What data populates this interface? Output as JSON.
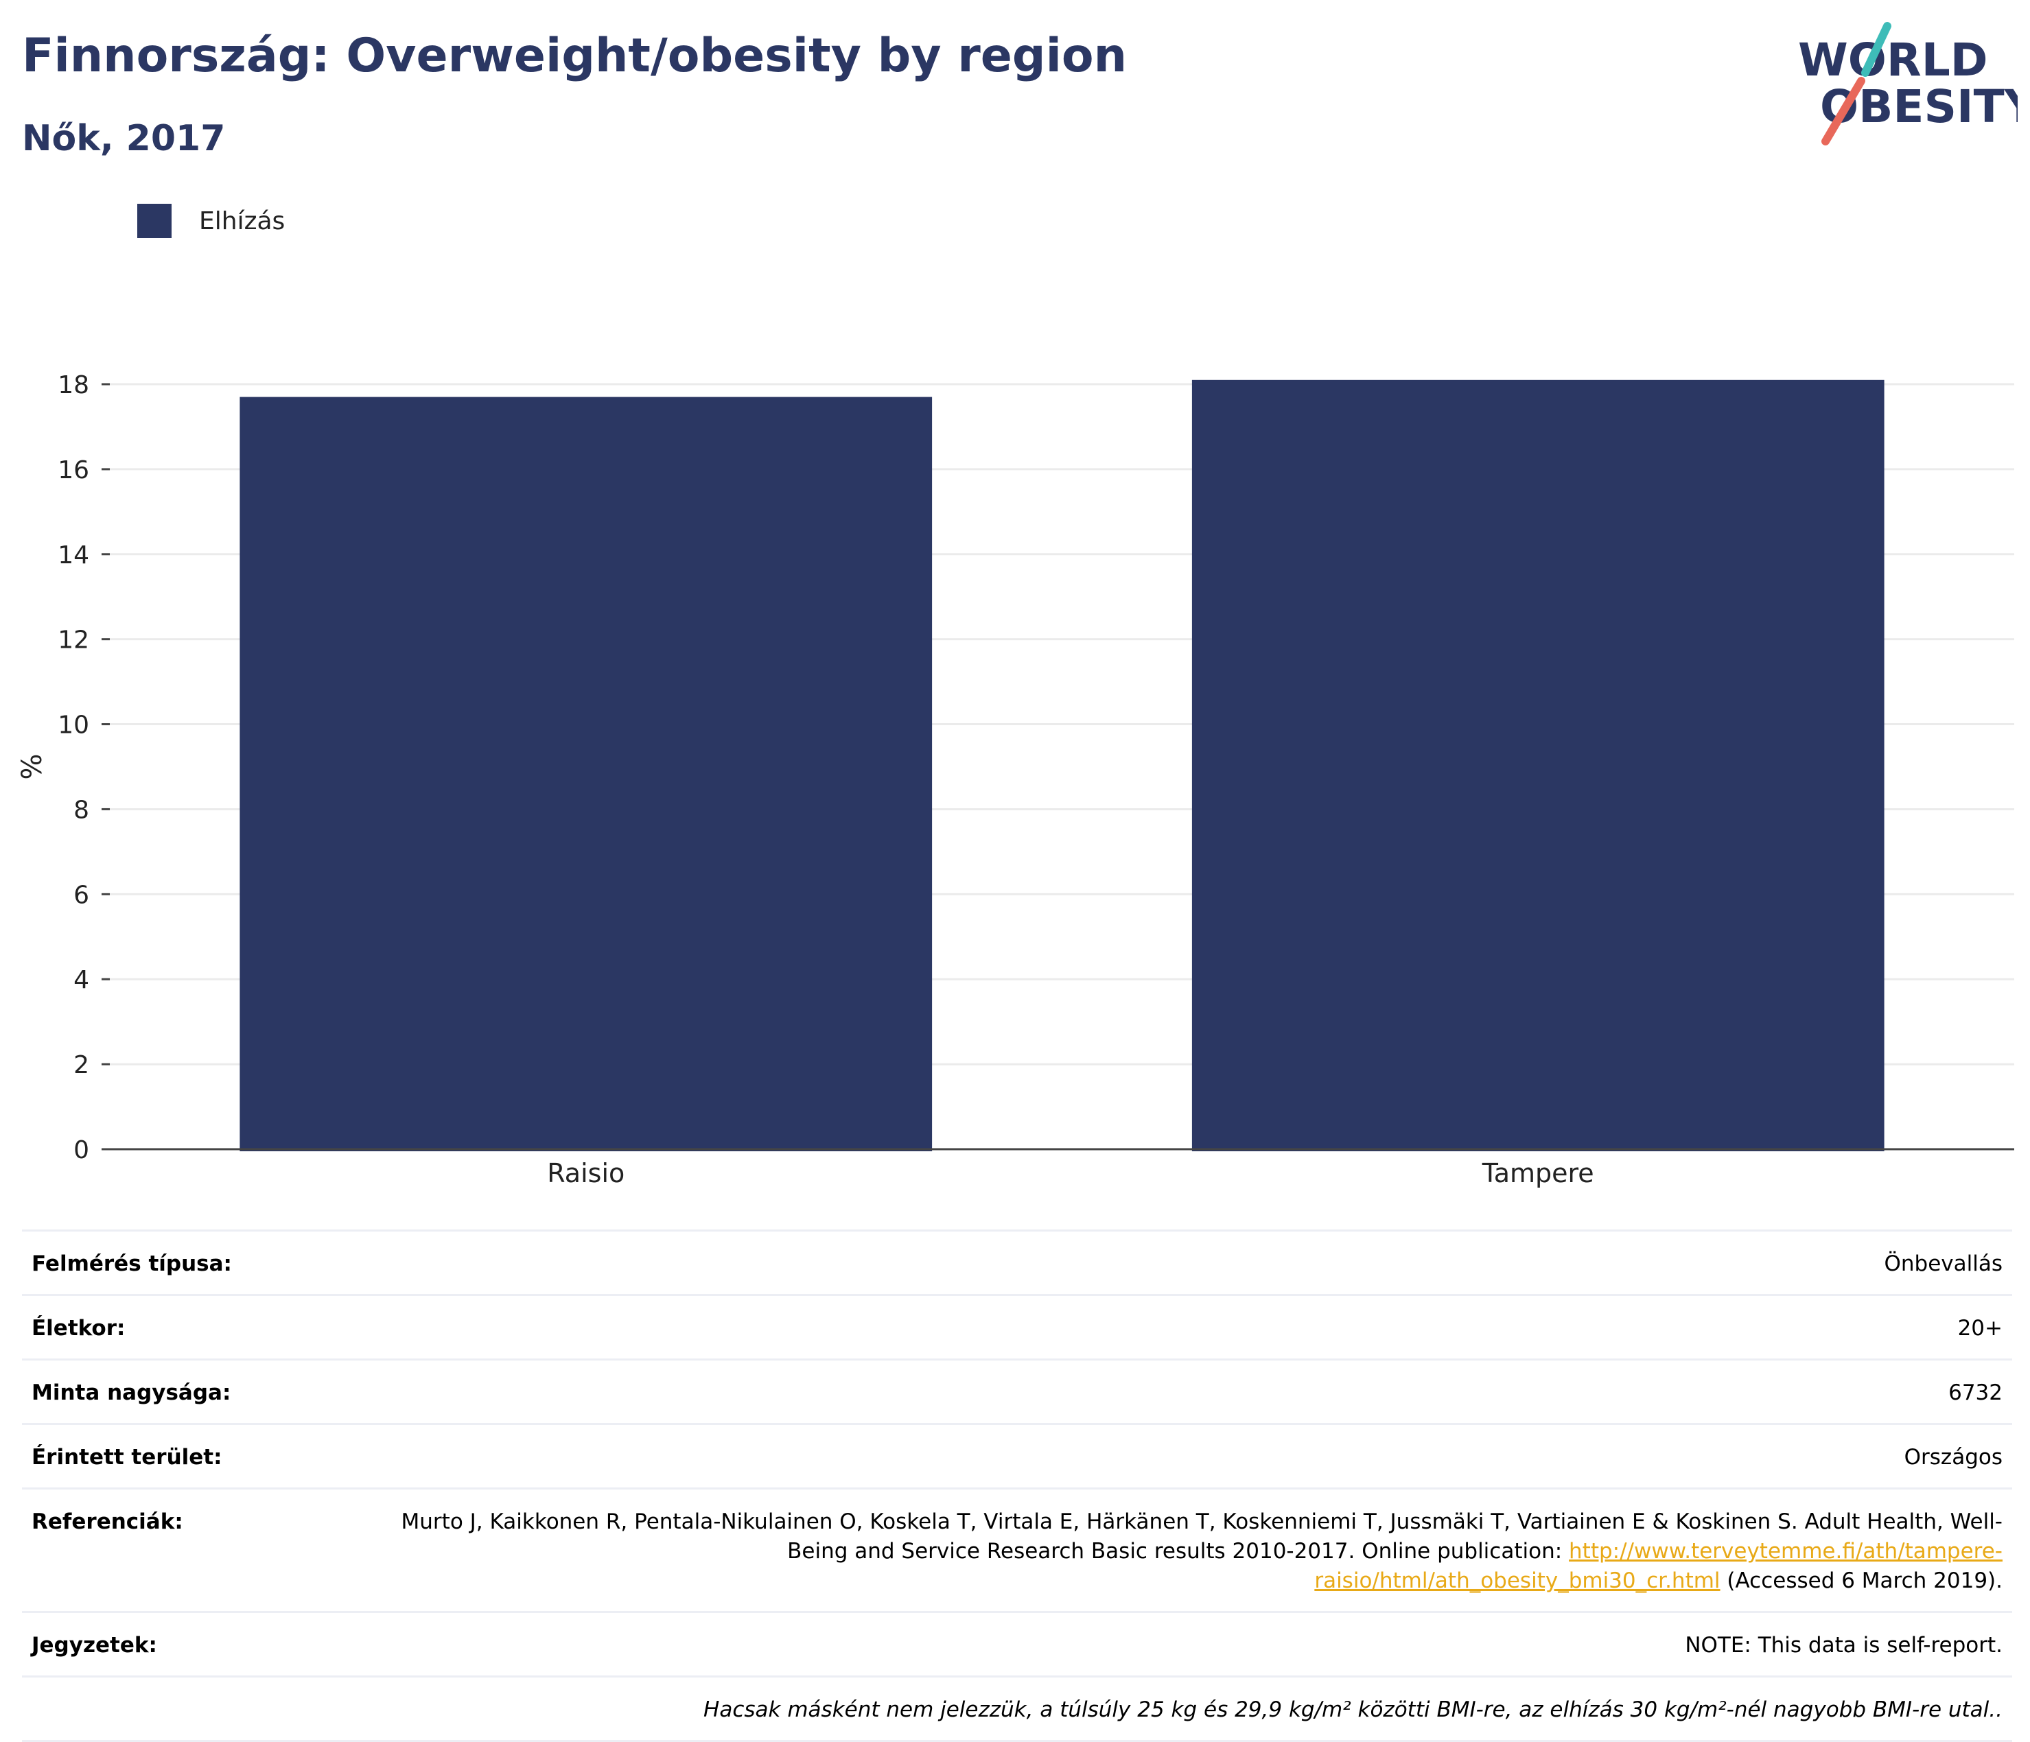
{
  "header": {
    "title": "Finnország: Overweight/obesity by region",
    "subtitle": "Nők, 2017"
  },
  "logo": {
    "line1": "WORLD",
    "line2": "OBESITY",
    "accent_teal": "#3ebcb8",
    "accent_red": "#e8685a"
  },
  "legend": {
    "label": "Elhízás",
    "color": "#2b3763"
  },
  "chart_data": {
    "type": "bar",
    "categories": [
      "Raisio",
      "Tampere"
    ],
    "series": [
      {
        "name": "Elhízás",
        "values": [
          17.7,
          18.1
        ],
        "color": "#2b3763"
      }
    ],
    "ylabel": "%",
    "ylim": [
      0,
      18
    ],
    "yticks": [
      0,
      2,
      4,
      6,
      8,
      10,
      12,
      14,
      16,
      18
    ],
    "grid": true,
    "legend_position": "top-left"
  },
  "meta": {
    "survey_type": {
      "label": "Felmérés típusa:",
      "value": "Önbevallás"
    },
    "age": {
      "label": "Életkor:",
      "value": "20+"
    },
    "sample_size": {
      "label": "Minta nagysága:",
      "value": "6732"
    },
    "area": {
      "label": "Érintett terület:",
      "value": "Országos"
    },
    "references": {
      "label": "Referenciák:",
      "text_before": "Murto J, Kaikkonen R, Pentala-Nikulainen O, Koskela T, Virtala E, Härkänen T, Koskenniemi T, Jussmäki T, Vartiainen E & Koskinen S. Adult Health, Well-Being and Service Research Basic results 2010-2017. Online publication:",
      "link": "http://www.terveytemme.fi/ath/tampere-raisio/html/ath_obesity_bmi30_cr.html",
      "text_after": "(Accessed 6 March 2019)."
    },
    "notes": {
      "label": "Jegyzetek:",
      "value": "NOTE: This data is self-report."
    },
    "footnote": "Hacsak másként nem jelezzük, a túlsúly 25 kg és 29,9 kg/m² közötti BMI-re, az elhízás 30 kg/m²-nél nagyobb BMI-re utal.."
  }
}
